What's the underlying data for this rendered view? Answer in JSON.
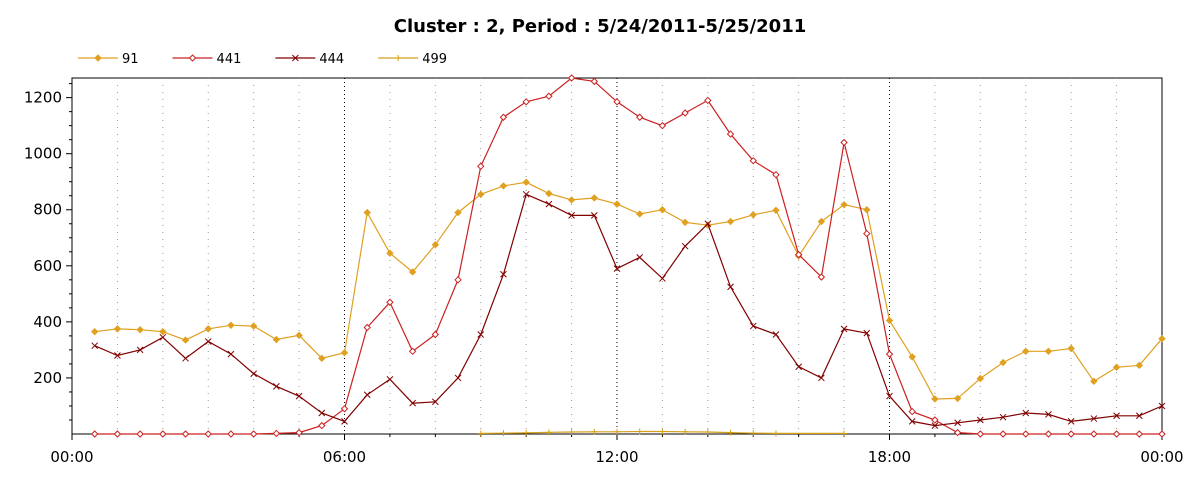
{
  "chart_data": {
    "type": "line",
    "title": "Cluster : 2, Period : 5/24/2011-5/25/2011",
    "xlabel": "",
    "ylabel": "",
    "x_ticks": [
      "00:00",
      "06:00",
      "12:00",
      "18:00",
      "00:00"
    ],
    "y_ticks": [
      200,
      400,
      600,
      800,
      1000,
      1200
    ],
    "xlim_hours": [
      0,
      24
    ],
    "ylim": [
      0,
      1270
    ],
    "grid": "dotted vertical",
    "legend_position": "top-left",
    "series": [
      {
        "name": "91",
        "color": "#e0a020",
        "marker": "diamond",
        "x": [
          0.5,
          1,
          1.5,
          2,
          2.5,
          3,
          3.5,
          4,
          4.5,
          5,
          5.5,
          6,
          6.5,
          7,
          7.5,
          8,
          8.5,
          9,
          9.5,
          10,
          10.5,
          11,
          11.5,
          12,
          12.5,
          13,
          13.5,
          14,
          14.5,
          15,
          15.5,
          16,
          16.5,
          17,
          17.5,
          18,
          18.5,
          19,
          19.5,
          20,
          20.5,
          21,
          21.5,
          22,
          22.5,
          23,
          23.5,
          24
        ],
        "values": [
          365,
          375,
          372,
          365,
          335,
          375,
          388,
          385,
          337,
          352,
          270,
          290,
          790,
          645,
          578,
          675,
          790,
          855,
          885,
          898,
          858,
          835,
          842,
          820,
          785,
          800,
          755,
          745,
          758,
          782,
          798,
          635,
          758,
          818,
          800,
          405,
          275,
          125,
          127,
          198,
          255,
          295,
          295,
          305,
          188,
          238,
          245,
          340
        ]
      },
      {
        "name": "441",
        "color": "#cc2020",
        "marker": "diamond-open",
        "x": [
          0.5,
          1,
          1.5,
          2,
          2.5,
          3,
          3.5,
          4,
          4.5,
          5,
          5.5,
          6,
          6.5,
          7,
          7.5,
          8,
          8.5,
          9,
          9.5,
          10,
          10.5,
          11,
          11.5,
          12,
          12.5,
          13,
          13.5,
          14,
          14.5,
          15,
          15.5,
          16,
          16.5,
          17,
          17.5,
          18,
          18.5,
          19,
          19.5,
          20,
          20.5,
          21,
          21.5,
          22,
          22.5,
          23,
          23.5,
          24
        ],
        "values": [
          0,
          0,
          0,
          0,
          0,
          0,
          0,
          0,
          2,
          5,
          30,
          90,
          380,
          470,
          295,
          355,
          550,
          955,
          1130,
          1185,
          1205,
          1270,
          1258,
          1185,
          1130,
          1100,
          1145,
          1190,
          1070,
          975,
          925,
          640,
          560,
          1040,
          715,
          285,
          80,
          50,
          5,
          0,
          0,
          0,
          0,
          0,
          0,
          0,
          0,
          0
        ]
      },
      {
        "name": "444",
        "color": "#800000",
        "marker": "x",
        "x": [
          0.5,
          1,
          1.5,
          2,
          2.5,
          3,
          3.5,
          4,
          4.5,
          5,
          5.5,
          6,
          6.5,
          7,
          7.5,
          8,
          8.5,
          9,
          9.5,
          10,
          10.5,
          11,
          11.5,
          12,
          12.5,
          13,
          13.5,
          14,
          14.5,
          15,
          15.5,
          16,
          16.5,
          17,
          17.5,
          18,
          18.5,
          19,
          19.5,
          20,
          20.5,
          21,
          21.5,
          22,
          22.5,
          23,
          23.5,
          24
        ],
        "values": [
          315,
          280,
          300,
          345,
          270,
          330,
          285,
          215,
          170,
          135,
          75,
          45,
          140,
          195,
          110,
          115,
          200,
          355,
          570,
          855,
          820,
          780,
          780,
          590,
          630,
          555,
          670,
          750,
          525,
          385,
          355,
          240,
          200,
          375,
          360,
          135,
          45,
          30,
          40,
          50,
          60,
          75,
          70,
          45,
          55,
          65,
          65,
          100
        ]
      },
      {
        "name": "499",
        "color": "#d4a017",
        "marker": "plus",
        "x": [
          9,
          9.5,
          10,
          10.5,
          11,
          11.5,
          12,
          12.5,
          13,
          13.5,
          14,
          14.5,
          15,
          15.5,
          17
        ],
        "values": [
          2,
          3,
          4,
          6,
          7,
          8,
          8,
          9,
          9,
          8,
          7,
          5,
          3,
          2,
          2
        ]
      }
    ]
  }
}
